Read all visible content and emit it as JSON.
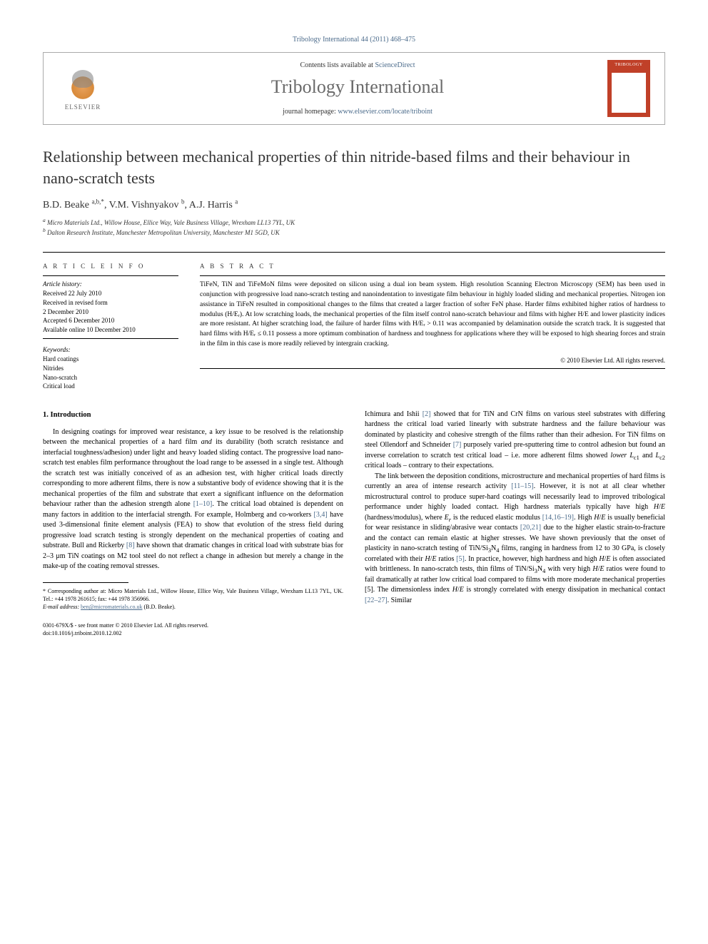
{
  "topJournalInfo": "Tribology International 44 (2011) 468–475",
  "header": {
    "publisherName": "ELSEVIER",
    "contentsPrefix": "Contents lists available at ",
    "contentsLink": "ScienceDirect",
    "journalName": "Tribology International",
    "homepagePrefix": "journal homepage: ",
    "homepageUrl": "www.elsevier.com/locate/triboint"
  },
  "article": {
    "title": "Relationship between mechanical properties of thin nitride-based films and their behaviour in nano-scratch tests",
    "authorsHtml": "B.D. Beake <sup>a,b,*</sup>, V.M. Vishnyakov <sup>b</sup>, A.J. Harris <sup>a</sup>",
    "affiliations": {
      "a": "Micro Materials Ltd., Willow House, Ellice Way, Vale Business Village, Wrexham LL13 7YL, UK",
      "b": "Dalton Research Institute, Manchester Metropolitan University, Manchester M1 5GD, UK"
    }
  },
  "infoHeading": "A R T I C L E   I N F O",
  "history": {
    "label": "Article history:",
    "received": "Received 22 July 2010",
    "revised1": "Received in revised form",
    "revised2": "2 December 2010",
    "accepted": "Accepted 6 December 2010",
    "online": "Available online 10 December 2010"
  },
  "keywords": {
    "label": "Keywords:",
    "items": [
      "Hard coatings",
      "Nitrides",
      "Nano-scratch",
      "Critical load"
    ]
  },
  "abstractHeading": "A B S T R A C T",
  "abstractText": "TiFeN, TiN and TiFeMoN films were deposited on silicon using a dual ion beam system. High resolution Scanning Electron Microscopy (SEM) has been used in conjunction with progressive load nano-scratch testing and nanoindentation to investigate film behaviour in highly loaded sliding and mechanical properties. Nitrogen ion assistance in TiFeN resulted in compositional changes to the films that created a larger fraction of softer FeN phase. Harder films exhibited higher ratios of hardness to modulus (H/Eᵣ). At low scratching loads, the mechanical properties of the film itself control nano-scratch behaviour and films with higher H/E and lower plasticity indices are more resistant. At higher scratching load, the failure of harder films with H/Eᵣ > 0.11 was accompanied by delamination outside the scratch track. It is suggested that hard films with H/Eᵣ ≤ 0.11 possess a more optimum combination of hardness and toughness for applications where they will be exposed to high shearing forces and strain in the film in this case is more readily relieved by intergrain cracking.",
  "copyrightLine": "© 2010 Elsevier Ltd. All rights reserved.",
  "section1Heading": "1. Introduction",
  "bodyLeft": {
    "p1": "In designing coatings for improved wear resistance, a key issue to be resolved is the relationship between the mechanical properties of a hard film and its durability (both scratch resistance and interfacial toughness/adhesion) under light and heavy loaded sliding contact. The progressive load nano-scratch test enables film performance throughout the load range to be assessed in a single test. Although the scratch test was initially conceived of as an adhesion test, with higher critical loads directly corresponding to more adherent films, there is now a substantive body of evidence showing that it is the mechanical properties of the film and substrate that exert a significant influence on the deformation behaviour rather than the adhesion strength alone [1–10]. The critical load obtained is dependent on many factors in addition to the interfacial strength. For example, Holmberg and co-workers [3,4] have used 3-dimensional finite element analysis (FEA) to show that evolution of the stress field during progressive load scratch testing is strongly dependent on the mechanical properties of coating and substrate. Bull and Rickerby [8] have shown that dramatic changes in critical load with substrate bias for 2–3 μm TiN coatings on M2 tool steel do not reflect a change in adhesion but merely a change in the make-up of the coating removal stresses."
  },
  "bodyRight": {
    "p1": "Ichimura and Ishii [2] showed that for TiN and CrN films on various steel substrates with differing hardness the critical load varied linearly with substrate hardness and the failure behaviour was dominated by plasticity and cohesive strength of the films rather than their adhesion. For TiN films on steel Ollendorf and Schneider [7] purposely varied pre-sputtering time to control adhesion but found an inverse correlation to scratch test critical load – i.e. more adherent films showed lower Lc1 and Lc2 critical loads – contrary to their expectations.",
    "p2": "The link between the deposition conditions, microstructure and mechanical properties of hard films is currently an area of intense research activity [11–15]. However, it is not at all clear whether microstructural control to produce super-hard coatings will necessarily lead to improved tribological performance under highly loaded contact. High hardness materials typically have high H/E (hardness/modulus), where Eᵣ is the reduced elastic modulus [14,16–19]. High H/E is usually beneficial for wear resistance in sliding/abrasive wear contacts [20,21] due to the higher elastic strain-to-fracture and the contact can remain elastic at higher stresses. We have shown previously that the onset of plasticity in nano-scratch testing of TiN/Si₃N₄ films, ranging in hardness from 12 to 30 GPa, is closely correlated with their H/E ratios [5]. In practice, however, high hardness and high H/E is often associated with brittleness. In nano-scratch tests, thin films of TiN/Si₃N₄ with very high H/E ratios were found to fail dramatically at rather low critical load compared to films with more moderate mechanical properties [5]. The dimensionless index H/E is strongly correlated with energy dissipation in mechanical contact [22–27]. Similar"
  },
  "footnotes": {
    "corrLabel": "* Corresponding author at: ",
    "corrText": "Micro Materials Ltd., Willow House, Ellice Way, Vale Business Village, Wrexham LL13 7YL, UK. Tel.: +44 1978 261615; fax: +44 1978 356966.",
    "emailLabel": "E-mail address: ",
    "emailValue": "ben@micromaterials.co.uk",
    "emailSuffix": " (B.D. Beake)."
  },
  "bottomMeta": {
    "line1": "0301-679X/$ - see front matter © 2010 Elsevier Ltd. All rights reserved.",
    "line2": "doi:10.1016/j.triboint.2010.12.002"
  },
  "colors": {
    "link": "#4a6a8a",
    "titleGrey": "#6a6a6a",
    "coverRed": "#c04028"
  }
}
